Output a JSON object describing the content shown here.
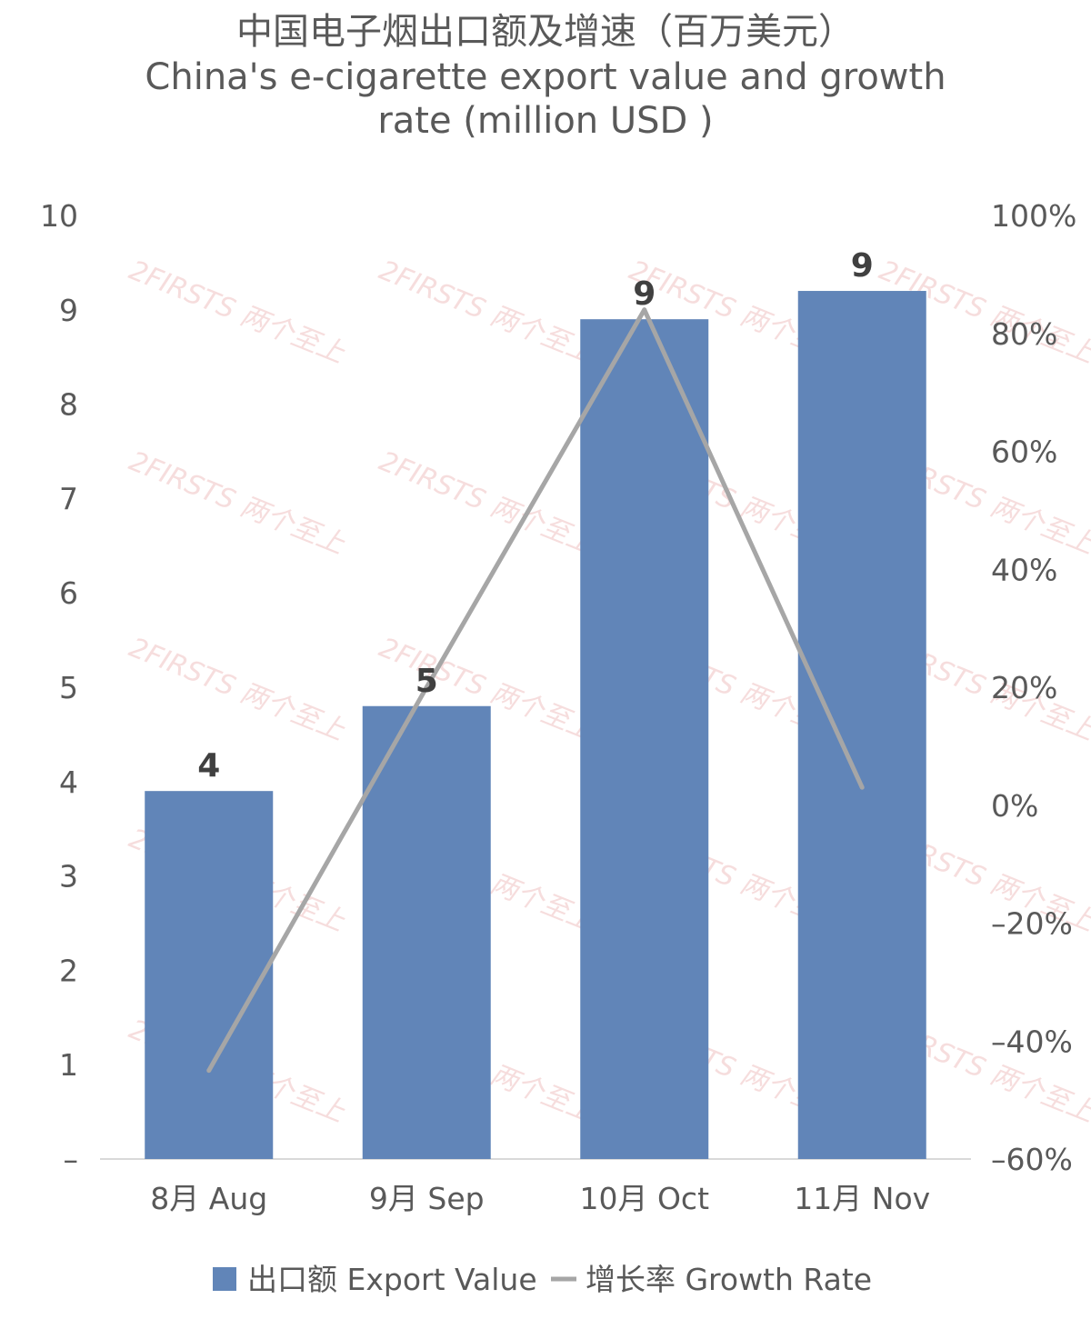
{
  "chart_data": {
    "type": "bar",
    "title_lines": [
      "中国电子烟出口额及增速（百万美元）",
      "China's e-cigarette export value and growth",
      "rate (million USD )"
    ],
    "categories": [
      "8月 Aug",
      "9月 Sep",
      "10月 Oct",
      "11月 Nov"
    ],
    "series": [
      {
        "name": "出口额 Export Value",
        "kind": "bar",
        "axis": "left",
        "color": "#6185b8",
        "values": [
          3.9,
          4.8,
          8.9,
          9.2
        ],
        "data_labels": [
          "4",
          "5",
          "9",
          "9"
        ]
      },
      {
        "name": "增长率 Growth Rate",
        "kind": "line",
        "axis": "right",
        "color": "#a6a6a6",
        "values": [
          -45,
          20,
          84,
          3
        ]
      }
    ],
    "left_axis": {
      "ylim": [
        0,
        10
      ],
      "tick_labels": [
        "–",
        "1",
        "2",
        "3",
        "4",
        "5",
        "6",
        "7",
        "8",
        "9",
        "10"
      ]
    },
    "right_axis": {
      "ylim": [
        -60,
        100
      ],
      "tick_labels": [
        "-60%",
        "-40%",
        "-20%",
        "0%",
        "20%",
        "40%",
        "60%",
        "80%",
        "100%"
      ]
    },
    "grid": false,
    "legend_position": "bottom",
    "watermark": "2FIRSTS 两个至上"
  }
}
